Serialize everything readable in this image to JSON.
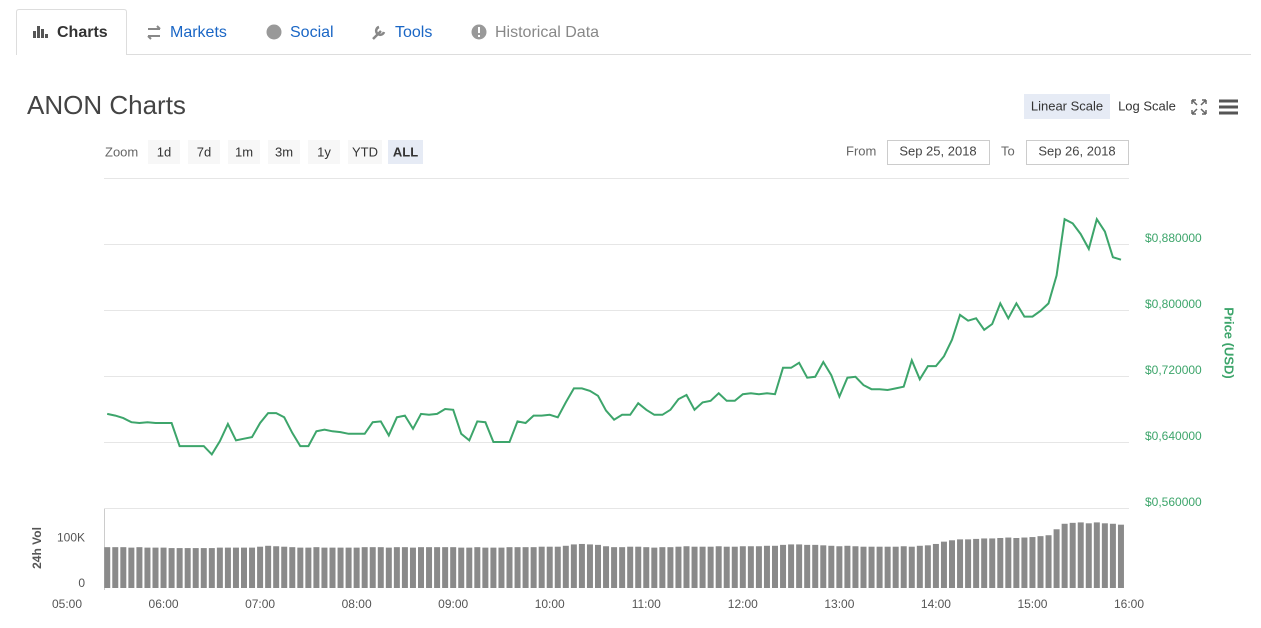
{
  "tabs": [
    "Charts",
    "Markets",
    "Social",
    "Tools",
    "Historical Data"
  ],
  "title": "ANON Charts",
  "scale_buttons": [
    "Linear Scale",
    "Log Scale"
  ],
  "zoom": {
    "label": "Zoom",
    "options": [
      "1d",
      "7d",
      "1m",
      "3m",
      "1y",
      "YTD",
      "ALL"
    ]
  },
  "range": {
    "from_label": "From",
    "from": "Sep 25, 2018",
    "to_label": "To",
    "to": "Sep 26, 2018"
  },
  "chart_data": [
    {
      "type": "line",
      "y_label": "Price (USD)",
      "color": "#3da56b",
      "xlim": [
        "05:00",
        "16:00"
      ],
      "x": [
        "05:25",
        "05:30",
        "05:35",
        "05:40",
        "05:45",
        "05:50",
        "05:55",
        "06:00",
        "06:05",
        "06:10",
        "06:15",
        "06:20",
        "06:25",
        "06:30",
        "06:35",
        "06:40",
        "06:45",
        "06:50",
        "06:55",
        "07:00",
        "07:05",
        "07:10",
        "07:15",
        "07:20",
        "07:25",
        "07:30",
        "07:35",
        "07:40",
        "07:45",
        "07:50",
        "07:55",
        "08:00",
        "08:05",
        "08:10",
        "08:15",
        "08:20",
        "08:25",
        "08:30",
        "08:35",
        "08:40",
        "08:45",
        "08:50",
        "08:55",
        "09:00",
        "09:05",
        "09:10",
        "09:15",
        "09:20",
        "09:25",
        "09:30",
        "09:35",
        "09:40",
        "09:45",
        "09:50",
        "09:55",
        "10:00",
        "10:05",
        "10:10",
        "10:15",
        "10:20",
        "10:25",
        "10:30",
        "10:35",
        "10:40",
        "10:45",
        "10:50",
        "10:55",
        "11:00",
        "11:05",
        "11:10",
        "11:15",
        "11:20",
        "11:25",
        "11:30",
        "11:35",
        "11:40",
        "11:45",
        "11:50",
        "11:55",
        "12:00",
        "12:05",
        "12:10",
        "12:15",
        "12:20",
        "12:25",
        "12:30",
        "12:35",
        "12:40",
        "12:45",
        "12:50",
        "12:55",
        "13:00",
        "13:05",
        "13:10",
        "13:15",
        "13:20",
        "13:25",
        "13:30",
        "13:35",
        "13:40",
        "13:45",
        "13:50",
        "13:55",
        "14:00",
        "14:05",
        "14:10",
        "14:15",
        "14:20",
        "14:25",
        "14:30",
        "14:35",
        "14:40",
        "14:45",
        "14:50",
        "14:55",
        "15:00",
        "15:05",
        "15:10",
        "15:15",
        "15:20",
        "15:25",
        "15:30",
        "15:35",
        "15:40",
        "15:45",
        "15:50",
        "15:55"
      ],
      "values": [
        0.674,
        0.672,
        0.669,
        0.664,
        0.663,
        0.664,
        0.663,
        0.663,
        0.663,
        0.635,
        0.635,
        0.635,
        0.635,
        0.625,
        0.641,
        0.662,
        0.642,
        0.644,
        0.646,
        0.663,
        0.675,
        0.675,
        0.67,
        0.651,
        0.635,
        0.635,
        0.653,
        0.655,
        0.653,
        0.652,
        0.65,
        0.65,
        0.65,
        0.664,
        0.665,
        0.648,
        0.67,
        0.672,
        0.656,
        0.674,
        0.673,
        0.674,
        0.68,
        0.679,
        0.65,
        0.642,
        0.665,
        0.664,
        0.64,
        0.64,
        0.64,
        0.665,
        0.663,
        0.672,
        0.672,
        0.673,
        0.67,
        0.688,
        0.705,
        0.705,
        0.702,
        0.696,
        0.678,
        0.667,
        0.673,
        0.673,
        0.687,
        0.679,
        0.673,
        0.673,
        0.679,
        0.692,
        0.697,
        0.679,
        0.688,
        0.69,
        0.699,
        0.69,
        0.69,
        0.698,
        0.699,
        0.698,
        0.699,
        0.698,
        0.73,
        0.73,
        0.736,
        0.718,
        0.719,
        0.737,
        0.721,
        0.695,
        0.718,
        0.719,
        0.709,
        0.704,
        0.704,
        0.703,
        0.705,
        0.707,
        0.739,
        0.716,
        0.732,
        0.732,
        0.744,
        0.764,
        0.794,
        0.787,
        0.79,
        0.776,
        0.783,
        0.808,
        0.79,
        0.808,
        0.792,
        0.792,
        0.799,
        0.808,
        0.842,
        0.91,
        0.905,
        0.892,
        0.874,
        0.91,
        0.895,
        0.864,
        0.861
      ],
      "ylim": [
        0.56,
        0.96
      ],
      "yticks": [
        {
          "value": 0.56,
          "label": "$0,560000"
        },
        {
          "value": 0.64,
          "label": "$0,640000"
        },
        {
          "value": 0.72,
          "label": "$0,720000"
        },
        {
          "value": 0.8,
          "label": "$0,800000"
        },
        {
          "value": 0.88,
          "label": "$0,880000"
        }
      ],
      "grid": true
    },
    {
      "type": "bar",
      "y_label": "24h Vol",
      "color": "#8a8a8a",
      "values": [
        89000,
        89000,
        89000,
        88000,
        89000,
        88000,
        88000,
        88000,
        87000,
        87000,
        87000,
        87000,
        87000,
        87000,
        88000,
        88000,
        88000,
        88000,
        88000,
        90000,
        92000,
        91000,
        90000,
        89000,
        88000,
        88000,
        89000,
        88000,
        88000,
        88000,
        88000,
        88000,
        89000,
        89000,
        89000,
        88000,
        89000,
        89000,
        88000,
        89000,
        89000,
        89000,
        89000,
        89000,
        88000,
        88000,
        89000,
        88000,
        88000,
        88000,
        89000,
        89000,
        89000,
        89000,
        90000,
        90000,
        90000,
        92000,
        95000,
        96000,
        95000,
        94000,
        91000,
        89000,
        89000,
        90000,
        90000,
        89000,
        88000,
        89000,
        89000,
        90000,
        91000,
        90000,
        90000,
        90000,
        91000,
        90000,
        90000,
        91000,
        91000,
        91000,
        92000,
        92000,
        94000,
        95000,
        95000,
        94000,
        94000,
        93000,
        92000,
        91000,
        92000,
        91000,
        90000,
        90000,
        90000,
        90000,
        90000,
        91000,
        90000,
        92000,
        93000,
        96000,
        101000,
        104000,
        106000,
        106000,
        107000,
        108000,
        108000,
        109000,
        110000,
        109000,
        110000,
        111000,
        113000,
        115000,
        128000,
        140000,
        142000,
        143000,
        141000,
        143000,
        141000,
        140000,
        138000
      ],
      "ylim": [
        0,
        170000
      ],
      "yticks": [
        0,
        {
          "value": 100000,
          "label": "100K"
        }
      ],
      "xticks": [
        "05:00",
        "06:00",
        "07:00",
        "08:00",
        "09:00",
        "10:00",
        "11:00",
        "12:00",
        "13:00",
        "14:00",
        "15:00",
        "16:00"
      ]
    }
  ]
}
